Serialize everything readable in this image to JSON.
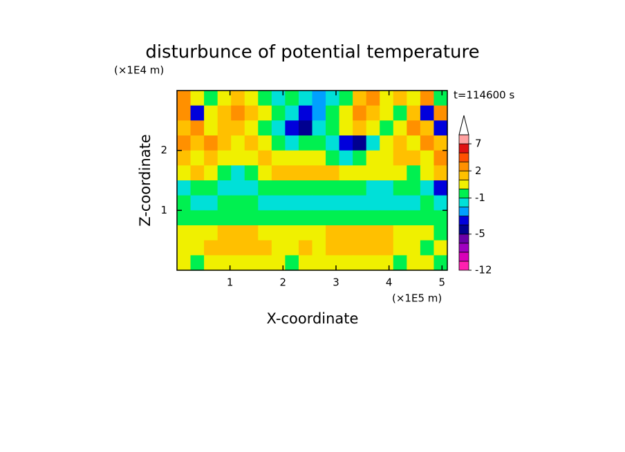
{
  "chart_data": {
    "type": "contour",
    "title": "disturbunce of potential temperature",
    "y_unit": "(×1E4 m)",
    "x_unit": "(×1E5 m)",
    "time_label": "t=114600 s",
    "xlabel": "X-coordinate",
    "ylabel": "Z-coordinate",
    "xlim": [
      0,
      5.1
    ],
    "ylim": [
      0,
      3
    ],
    "xticks": [
      1,
      2,
      3,
      4,
      5
    ],
    "yticks": [
      1,
      2
    ],
    "z": [
      [
        2,
        0.5,
        -0.5,
        0.5,
        1.5,
        0.5,
        -0.5,
        -1.5,
        -0.5,
        -1.5,
        -2.5,
        -1.5,
        -0.5,
        1.5,
        2.5,
        0.5,
        1.5,
        0.5,
        2.5,
        -0.5
      ],
      [
        2.5,
        -3.5,
        0.5,
        1.5,
        2.5,
        1.5,
        0.5,
        -0.5,
        -1.5,
        -3.5,
        -2.5,
        -0.5,
        0.5,
        2.5,
        1.5,
        0.5,
        -0.5,
        1.5,
        -3.5,
        2.5
      ],
      [
        1.5,
        2.5,
        0.5,
        1.5,
        1.5,
        0.5,
        -0.5,
        -1.5,
        -3.5,
        -4.5,
        -1.5,
        -0.5,
        0.5,
        1.5,
        0.5,
        -0.5,
        0.5,
        2.5,
        1.5,
        -3.5
      ],
      [
        2.5,
        1.5,
        2.5,
        1.5,
        0.5,
        1.5,
        0.5,
        -0.5,
        -1.5,
        -0.5,
        -0.5,
        -1.5,
        -3.5,
        -4.5,
        -1.5,
        0.5,
        1.5,
        0.5,
        2.5,
        1.5
      ],
      [
        1.5,
        0.5,
        1.5,
        0.5,
        0.5,
        0.5,
        1.5,
        0.5,
        0.5,
        0.5,
        0.5,
        -0.5,
        -1.5,
        -0.5,
        0.5,
        0.5,
        1.5,
        1.5,
        0.5,
        2.5
      ],
      [
        0.5,
        1.5,
        0.5,
        -0.5,
        -1.5,
        -0.5,
        0.5,
        1.5,
        1.5,
        1.5,
        1.5,
        1.5,
        0.5,
        0.5,
        0.5,
        0.5,
        0.5,
        -0.5,
        0.5,
        1.5
      ],
      [
        -1.5,
        -0.5,
        -0.5,
        -1.5,
        -1.5,
        -1.5,
        -0.5,
        -0.5,
        -0.5,
        -0.5,
        -0.5,
        -0.5,
        -0.5,
        -0.5,
        -1.5,
        -1.5,
        -0.5,
        -0.5,
        -1.5,
        -3.5
      ],
      [
        -0.5,
        -1.5,
        -1.5,
        -0.5,
        -0.5,
        -0.5,
        -1.5,
        -1.5,
        -1.5,
        -1.5,
        -1.5,
        -1.5,
        -1.5,
        -1.5,
        -1.5,
        -1.5,
        -1.5,
        -1.5,
        -0.5,
        -1.5
      ],
      [
        -0.5,
        -0.5,
        -0.5,
        -0.5,
        -0.5,
        -0.5,
        -0.5,
        -0.5,
        -0.5,
        -0.5,
        -0.5,
        -0.5,
        -0.5,
        -0.5,
        -0.5,
        -0.5,
        -0.5,
        -0.5,
        -0.5,
        -0.5
      ],
      [
        0.5,
        0.5,
        0.5,
        1.5,
        1.5,
        1.5,
        0.5,
        0.5,
        0.5,
        0.5,
        0.5,
        1.5,
        1.5,
        1.5,
        1.5,
        1.5,
        0.5,
        0.5,
        0.5,
        -0.5
      ],
      [
        0.5,
        0.5,
        1.5,
        1.5,
        1.5,
        1.5,
        1.5,
        0.5,
        0.5,
        1.5,
        0.5,
        1.5,
        1.5,
        1.5,
        1.5,
        1.5,
        0.5,
        0.5,
        -0.5,
        0.5
      ],
      [
        0.5,
        -0.5,
        0.5,
        0.5,
        0.5,
        0.5,
        0.5,
        0.5,
        -0.5,
        0.5,
        0.5,
        0.5,
        0.5,
        0.5,
        0.5,
        0.5,
        -0.5,
        0.5,
        0.5,
        -0.5
      ]
    ],
    "levels": [
      -12,
      -10,
      -8,
      -6,
      -5,
      -4,
      -3,
      -2,
      -1,
      0,
      1,
      2,
      3,
      5,
      7,
      9
    ],
    "colors": [
      "#ff20b0",
      "#d800b8",
      "#a000c0",
      "#6a00a8",
      "#000090",
      "#0000dc",
      "#00a0ff",
      "#00e0d8",
      "#00f050",
      "#f0f000",
      "#ffc000",
      "#ff9000",
      "#ff5000",
      "#e01010",
      "#ffa0a0"
    ],
    "extend_color": "#ffffff",
    "cbar_ticks": [
      -12,
      -5,
      -1,
      2,
      7
    ]
  }
}
